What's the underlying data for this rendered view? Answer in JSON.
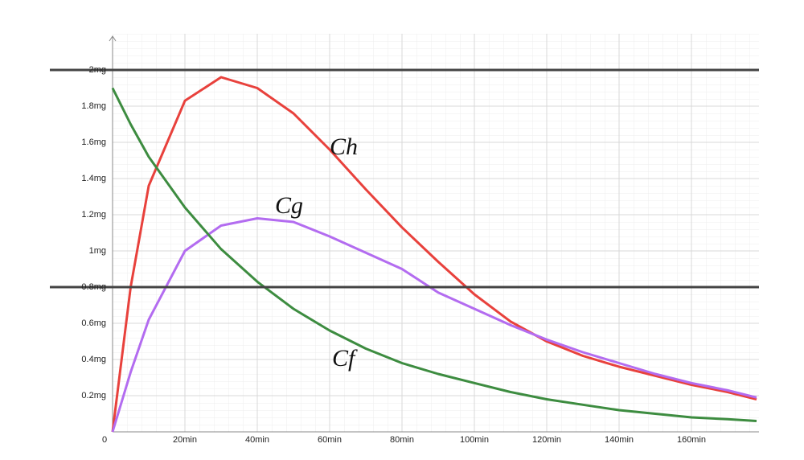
{
  "chart_data": {
    "type": "line",
    "x": [
      0,
      5,
      10,
      20,
      30,
      40,
      50,
      60,
      70,
      80,
      90,
      100,
      110,
      120,
      130,
      140,
      150,
      160,
      170,
      178
    ],
    "series": [
      {
        "name": "Ch",
        "color": "#e8413c",
        "values": [
          0,
          0.8,
          1.36,
          1.83,
          1.96,
          1.9,
          1.76,
          1.56,
          1.34,
          1.13,
          0.94,
          0.76,
          0.61,
          0.5,
          0.42,
          0.36,
          0.31,
          0.26,
          0.22,
          0.18
        ]
      },
      {
        "name": "Cg",
        "color": "#b36cf0",
        "values": [
          0,
          0.33,
          0.62,
          1.0,
          1.14,
          1.18,
          1.16,
          1.08,
          0.99,
          0.9,
          0.77,
          0.68,
          0.59,
          0.51,
          0.44,
          0.38,
          0.32,
          0.27,
          0.23,
          0.19
        ]
      },
      {
        "name": "Cf",
        "color": "#3d8c40",
        "values": [
          1.9,
          1.7,
          1.52,
          1.24,
          1.01,
          0.83,
          0.68,
          0.56,
          0.46,
          0.38,
          0.32,
          0.27,
          0.22,
          0.18,
          0.15,
          0.12,
          0.1,
          0.08,
          0.07,
          0.06
        ]
      }
    ],
    "xlim": [
      0,
      178
    ],
    "ylim": [
      0,
      2.2
    ],
    "xticks": [
      0,
      {
        "value": 20,
        "label": "20min"
      },
      {
        "value": 40,
        "label": "40min"
      },
      {
        "value": 60,
        "label": "60min"
      },
      {
        "value": 80,
        "label": "80min"
      },
      {
        "value": 100,
        "label": "100min"
      },
      {
        "value": 120,
        "label": "120min"
      },
      {
        "value": 140,
        "label": "140min"
      },
      {
        "value": 160,
        "label": "160min"
      }
    ],
    "yticks": [
      {
        "value": 0.2,
        "label": "0.2mg"
      },
      {
        "value": 0.4,
        "label": "0.4mg"
      },
      {
        "value": 0.6,
        "label": "0.6mg"
      },
      {
        "value": 0.8,
        "label": "0.8mg"
      },
      {
        "value": 1,
        "label": "1mg"
      },
      {
        "value": 1.2,
        "label": "1.2mg"
      },
      {
        "value": 1.4,
        "label": "1.4mg"
      },
      {
        "value": 1.6,
        "label": "1.6mg"
      },
      {
        "value": 1.8,
        "label": "1.8mg"
      },
      {
        "value": 2,
        "label": "2mg"
      }
    ],
    "hlines": [
      2,
      0.8
    ],
    "grid": true
  }
}
